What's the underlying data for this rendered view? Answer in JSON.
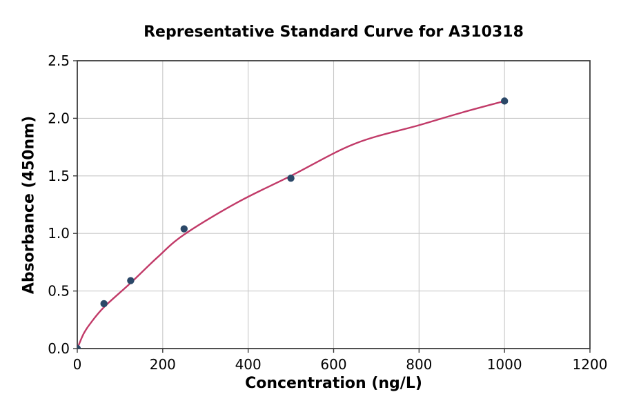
{
  "chart_data": {
    "type": "scatter",
    "title": "Representative Standard Curve for A310318",
    "xlabel": "Concentration (ng/L)",
    "ylabel": "Absorbance (450nm)",
    "xlim": [
      0,
      1200
    ],
    "ylim": [
      0,
      2.5
    ],
    "x_ticks": [
      "0",
      "200",
      "400",
      "600",
      "800",
      "1000",
      "1200"
    ],
    "y_ticks": [
      "0.0",
      "0.5",
      "1.0",
      "1.5",
      "2.0",
      "2.5"
    ],
    "grid": true,
    "legend": "none",
    "points": [
      {
        "x": 0,
        "y": 0.0
      },
      {
        "x": 62.5,
        "y": 0.39
      },
      {
        "x": 125,
        "y": 0.59
      },
      {
        "x": 250,
        "y": 1.04
      },
      {
        "x": 500,
        "y": 1.48
      },
      {
        "x": 1000,
        "y": 2.15
      }
    ],
    "fit_curve": [
      [
        0,
        0.0
      ],
      [
        15,
        0.13
      ],
      [
        31,
        0.22
      ],
      [
        62.5,
        0.36
      ],
      [
        125,
        0.57
      ],
      [
        187,
        0.79
      ],
      [
        250,
        0.99
      ],
      [
        375,
        1.27
      ],
      [
        500,
        1.5
      ],
      [
        650,
        1.78
      ],
      [
        800,
        1.94
      ],
      [
        900,
        2.05
      ],
      [
        1000,
        2.15
      ]
    ],
    "colors": {
      "curve": "#C13A68",
      "points": "#2B4868",
      "grid": "#C8C8C8",
      "spine": "#3C3C3C",
      "text": "#000000",
      "background": "#FFFFFF"
    }
  }
}
